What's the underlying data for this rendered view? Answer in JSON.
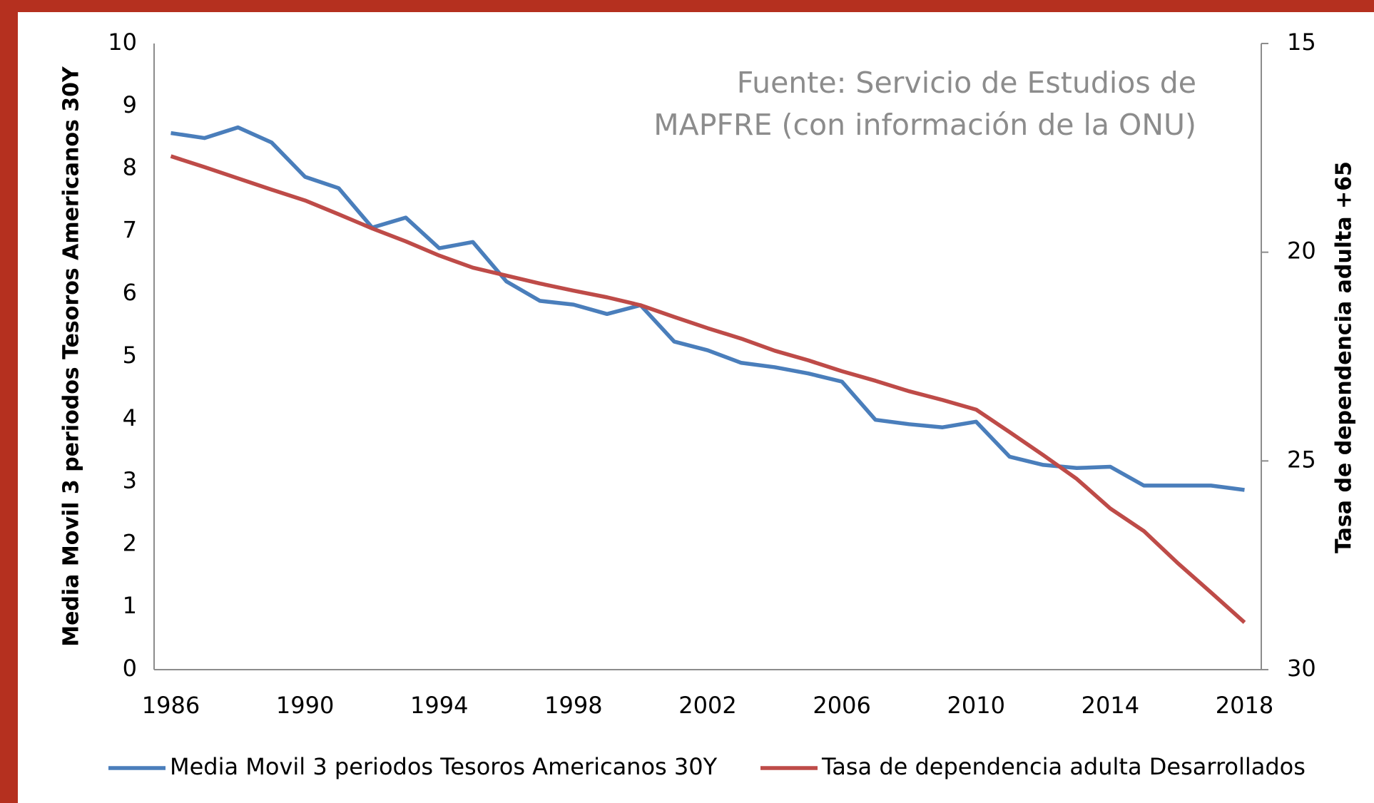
{
  "chart_data": {
    "type": "line",
    "annotation": [
      "Fuente: Servicio de Estudios de",
      "MAPFRE (con información de la ONU)"
    ],
    "ylabel": "Media Movil 3 periodos Tesoros Americanos 30Y",
    "y2label": "Tasa de dependencia adulta +65",
    "x": [
      1986,
      1987,
      1988,
      1989,
      1990,
      1991,
      1992,
      1993,
      1994,
      1995,
      1996,
      1997,
      1998,
      1999,
      2000,
      2001,
      2002,
      2003,
      2004,
      2005,
      2006,
      2007,
      2008,
      2009,
      2010,
      2011,
      2012,
      2013,
      2014,
      2015,
      2016,
      2017,
      2018
    ],
    "xlim": [
      1985.5,
      2018.5
    ],
    "xticks": [
      1986,
      1990,
      1994,
      1998,
      2002,
      2006,
      2010,
      2014,
      2018
    ],
    "ylim": [
      0,
      10
    ],
    "yticks": [
      0,
      1,
      2,
      3,
      4,
      5,
      6,
      7,
      8,
      9,
      10
    ],
    "y2lim": [
      15,
      30
    ],
    "y2ticks": [
      15,
      20,
      25,
      30
    ],
    "y2_inverted": true,
    "legend": "bottom",
    "series": [
      {
        "name": "Media Movil 3 periodos Tesoros Americanos 30Y",
        "color": "#4a7ebb",
        "values": [
          8.57,
          8.49,
          8.66,
          8.42,
          7.87,
          7.69,
          7.06,
          7.22,
          6.73,
          6.83,
          6.2,
          5.89,
          5.83,
          5.68,
          5.82,
          5.24,
          5.1,
          4.9,
          4.83,
          4.73,
          4.6,
          3.99,
          3.92,
          3.87,
          3.96,
          3.4,
          3.27,
          3.22,
          3.24,
          2.94,
          2.94,
          2.94,
          2.87
        ]
      },
      {
        "name": "Tasa de dependencia adulta Desarrollados",
        "color": "#be4b48",
        "axis": "y2",
        "values": [
          17.7,
          17.96,
          18.23,
          18.5,
          18.76,
          19.09,
          19.43,
          19.74,
          20.08,
          20.37,
          20.56,
          20.75,
          20.92,
          21.08,
          21.27,
          21.55,
          21.82,
          22.07,
          22.36,
          22.59,
          22.85,
          23.08,
          23.33,
          23.54,
          23.77,
          24.31,
          24.86,
          25.43,
          26.14,
          26.68,
          27.44,
          28.15,
          28.87
        ]
      }
    ]
  }
}
